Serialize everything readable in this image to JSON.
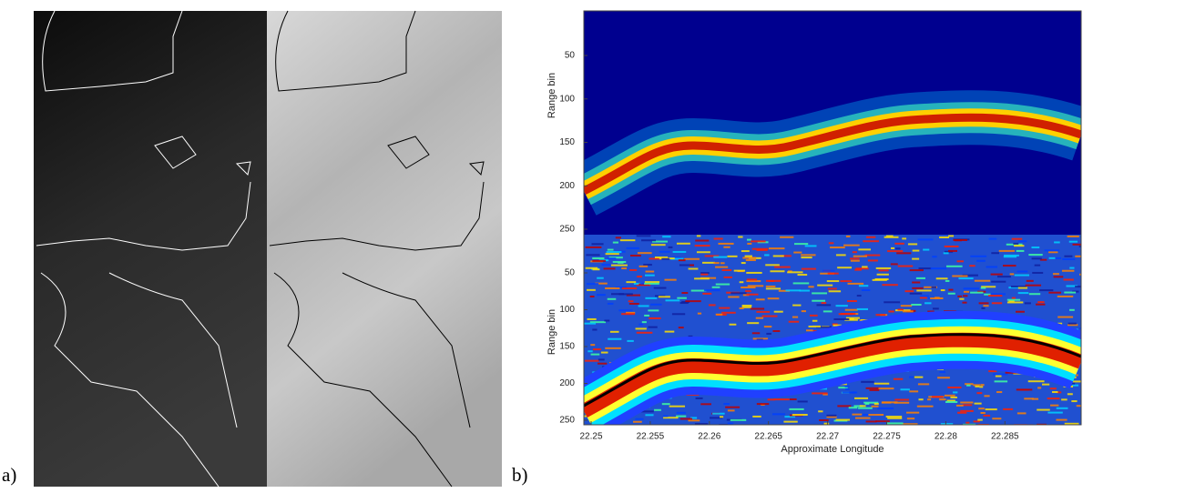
{
  "panel_a": {
    "label": "a)"
  },
  "panel_b": {
    "label": "b)",
    "top": {
      "y_label": "Range bin",
      "y_ticks": [
        50,
        100,
        150,
        200,
        250
      ]
    },
    "bottom": {
      "y_label": "Range bin",
      "y_ticks": [
        50,
        100,
        150,
        200,
        250
      ]
    },
    "x_label": "Approximate Longitude",
    "x_ticks": [
      22.25,
      22.255,
      22.26,
      22.265,
      22.27,
      22.275,
      22.28,
      22.285
    ]
  }
}
